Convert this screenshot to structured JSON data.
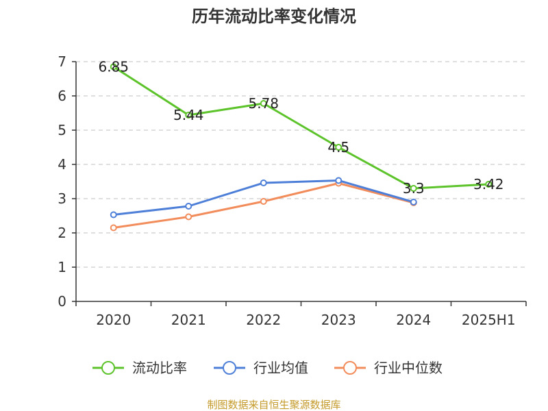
{
  "chart_data": {
    "type": "line",
    "title": "历年流动比率变化情况",
    "xlabel": "",
    "ylabel": "",
    "categories": [
      "2020",
      "2021",
      "2022",
      "2023",
      "2024",
      "2025H1"
    ],
    "ylim": [
      0,
      7
    ],
    "yticks": [
      0,
      1,
      2,
      3,
      4,
      5,
      6,
      7
    ],
    "grid": true,
    "legend_position": "bottom",
    "series": [
      {
        "name": "流动比率",
        "color": "#5cc32a",
        "values": [
          6.85,
          5.44,
          5.78,
          4.5,
          3.3,
          3.42
        ],
        "labels": [
          "6.85",
          "5.44",
          "5.78",
          "4.5",
          "3.3",
          "3.42"
        ]
      },
      {
        "name": "行业均值",
        "color": "#4e7fd8",
        "values": [
          2.53,
          2.78,
          3.46,
          3.53,
          2.9,
          null
        ]
      },
      {
        "name": "行业中位数",
        "color": "#f28c5b",
        "values": [
          2.15,
          2.47,
          2.92,
          3.45,
          2.88,
          null
        ]
      }
    ]
  },
  "source": "制图数据来自恒生聚源数据库"
}
